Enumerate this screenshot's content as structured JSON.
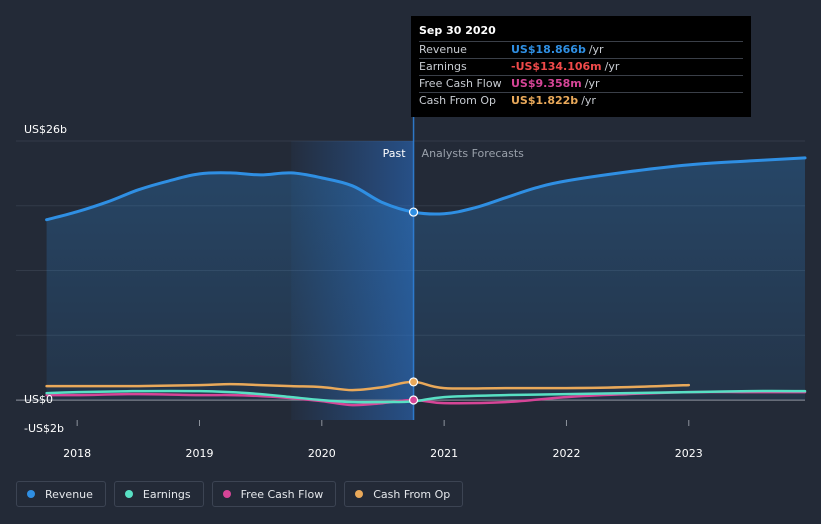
{
  "chart_data": {
    "type": "line",
    "x_domain": [
      2017.5,
      2023.95
    ],
    "y_domain": [
      -2,
      26
    ],
    "y_axis_labels": [
      {
        "text": "US$26b",
        "value": 26
      },
      {
        "text": "US$0",
        "value": 0
      },
      {
        "text": "-US$2b",
        "value": -2
      }
    ],
    "x_ticks": [
      {
        "text": "2018",
        "value": 2018
      },
      {
        "text": "2019",
        "value": 2019
      },
      {
        "text": "2020",
        "value": 2020
      },
      {
        "text": "2021",
        "value": 2021
      },
      {
        "text": "2022",
        "value": 2022
      },
      {
        "text": "2023",
        "value": 2023
      }
    ],
    "past_label": "Past",
    "forecast_label": "Analysts Forecasts",
    "divider_x": 2020.75,
    "highlight_range": [
      2019.75,
      2020.75
    ],
    "series": [
      {
        "name": "Revenue",
        "color": "#2f8fe3",
        "area": true,
        "x": [
          2017.75,
          2018.0,
          2018.25,
          2018.5,
          2018.75,
          2019.0,
          2019.25,
          2019.5,
          2019.75,
          2020.0,
          2020.25,
          2020.5,
          2020.75,
          2021.0,
          2021.25,
          2021.5,
          2021.75,
          2022.0,
          2022.5,
          2023.0,
          2023.5,
          2023.95
        ],
        "y": [
          18.1,
          18.9,
          19.9,
          21.1,
          22.0,
          22.7,
          22.8,
          22.6,
          22.8,
          22.3,
          21.5,
          19.8,
          18.866,
          18.7,
          19.3,
          20.3,
          21.3,
          22.0,
          22.9,
          23.6,
          24.0,
          24.3
        ]
      },
      {
        "name": "Earnings",
        "color": "#58e0c4",
        "area": false,
        "x": [
          2017.75,
          2018.0,
          2018.5,
          2019.0,
          2019.25,
          2019.5,
          2019.75,
          2020.0,
          2020.25,
          2020.5,
          2020.75,
          2021.0,
          2021.5,
          2022.0,
          2022.5,
          2023.0,
          2023.5,
          2023.95
        ],
        "y": [
          0.7,
          0.8,
          0.9,
          0.9,
          0.8,
          0.6,
          0.3,
          0.0,
          -0.2,
          -0.2,
          -0.134,
          0.3,
          0.5,
          0.6,
          0.7,
          0.8,
          0.9,
          0.9
        ]
      },
      {
        "name": "Free Cash Flow",
        "color": "#d64597",
        "area": false,
        "x": [
          2017.75,
          2018.0,
          2018.5,
          2019.0,
          2019.25,
          2019.5,
          2019.75,
          2020.0,
          2020.25,
          2020.5,
          2020.75,
          2021.0,
          2021.5,
          2022.0,
          2022.5,
          2023.0,
          2023.5,
          2023.95
        ],
        "y": [
          0.5,
          0.5,
          0.6,
          0.5,
          0.5,
          0.4,
          0.2,
          -0.1,
          -0.5,
          -0.3,
          0.009,
          -0.3,
          -0.2,
          0.3,
          0.6,
          0.8,
          0.8,
          0.8
        ]
      },
      {
        "name": "Cash From Op",
        "color": "#e9a95a",
        "area": false,
        "x": [
          2017.75,
          2018.0,
          2018.5,
          2019.0,
          2019.25,
          2019.5,
          2019.75,
          2020.0,
          2020.25,
          2020.5,
          2020.75,
          2021.0,
          2021.5,
          2022.0,
          2022.5,
          2023.0
        ],
        "y": [
          1.4,
          1.4,
          1.4,
          1.5,
          1.6,
          1.5,
          1.4,
          1.3,
          1.0,
          1.3,
          1.822,
          1.2,
          1.2,
          1.2,
          1.3,
          1.5
        ]
      }
    ],
    "highlight_points": [
      {
        "series": 0,
        "x": 2020.75,
        "y": 18.866
      },
      {
        "series": 3,
        "x": 2020.75,
        "y": 1.822
      },
      {
        "series": 2,
        "x": 2020.75,
        "y": 0.009
      }
    ]
  },
  "tooltip": {
    "date": "Sep 30 2020",
    "rows": [
      {
        "label": "Revenue",
        "value": "US$18.866b",
        "unit": "/yr",
        "color": "#2f8fe3"
      },
      {
        "label": "Earnings",
        "value": "-US$134.106m",
        "unit": "/yr",
        "color": "#f04a4a"
      },
      {
        "label": "Free Cash Flow",
        "value": "US$9.358m",
        "unit": "/yr",
        "color": "#d64597"
      },
      {
        "label": "Cash From Op",
        "value": "US$1.822b",
        "unit": "/yr",
        "color": "#e9a95a"
      }
    ]
  },
  "legend": [
    {
      "label": "Revenue",
      "color": "#2f8fe3"
    },
    {
      "label": "Earnings",
      "color": "#58e0c4"
    },
    {
      "label": "Free Cash Flow",
      "color": "#d64597"
    },
    {
      "label": "Cash From Op",
      "color": "#e9a95a"
    }
  ]
}
